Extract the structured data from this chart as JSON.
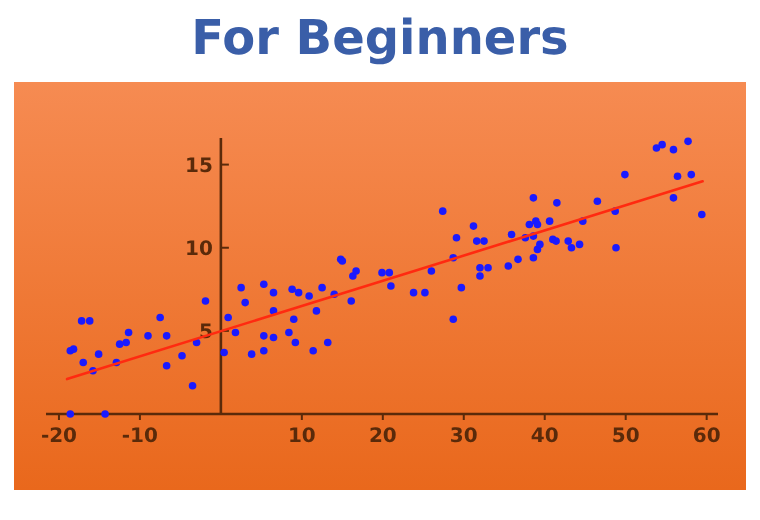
{
  "chart_data": {
    "type": "scatter",
    "title": "For Beginners",
    "xlim": [
      -21.6,
      61.4
    ],
    "ylim": [
      0,
      16.6
    ],
    "xticks": [
      -20,
      -10,
      10,
      20,
      30,
      40,
      50,
      60
    ],
    "yticks": [
      5,
      10,
      15
    ],
    "grid": false,
    "series": [
      {
        "marker": "circle",
        "color": "#1a1aff",
        "x": [
          -18.6,
          -18.2,
          -17.2,
          -16.2,
          -17,
          -15.8,
          -15.1,
          -14.3,
          -18.6,
          -12.9,
          -12.5,
          -11.7,
          -11.4,
          -9,
          -7.5,
          -6.7,
          -6.7,
          -4.8,
          -3.5,
          -3,
          -1.9,
          0.4,
          0.9,
          1.8,
          2.5,
          3,
          3.8,
          5.3,
          5.3,
          5.3,
          6.5,
          6.5,
          6.5,
          8.4,
          8.8,
          9,
          9.2,
          9.6,
          10.9,
          11.4,
          11.8,
          12.5,
          13.2,
          14,
          14.8,
          15,
          16.1,
          16.3,
          16.7,
          19.9,
          20.8,
          21,
          23.8,
          25.2,
          26,
          27.4,
          28.7,
          28.7,
          29.1,
          29.7,
          31.2,
          31.6,
          32.5,
          32,
          32,
          33,
          35.5,
          35.9,
          36.7,
          37.6,
          38.1,
          38.6,
          38.6,
          38.6,
          38.9,
          39.1,
          39.1,
          39.4,
          40.6,
          41,
          41.4,
          41.5,
          42.9,
          43.3,
          44.3,
          44.7,
          46.5,
          48.7,
          48.8,
          49.9,
          53.8,
          54.5,
          55.9,
          55.9,
          56.4,
          57.7,
          58.1,
          59.4
        ],
        "values": [
          3.8,
          3.9,
          5.6,
          5.6,
          3.1,
          2.6,
          3.6,
          0,
          0,
          3.1,
          4.2,
          4.3,
          4.9,
          4.7,
          5.8,
          4.7,
          2.9,
          3.5,
          1.7,
          4.3,
          6.8,
          3.7,
          5.8,
          4.9,
          7.6,
          6.7,
          3.6,
          7.8,
          4.7,
          3.8,
          7.3,
          4.6,
          6.2,
          4.9,
          7.5,
          5.7,
          4.3,
          7.3,
          7.1,
          3.8,
          6.2,
          7.6,
          4.3,
          7.2,
          9.3,
          9.2,
          6.8,
          8.3,
          8.6,
          8.5,
          8.5,
          7.7,
          7.3,
          7.3,
          8.6,
          12.2,
          5.7,
          9.4,
          10.6,
          7.6,
          11.3,
          10.4,
          10.4,
          8.8,
          8.3,
          8.8,
          8.9,
          10.8,
          9.3,
          10.6,
          11.4,
          13,
          10.7,
          9.4,
          11.6,
          11.4,
          9.9,
          10.2,
          11.6,
          10.5,
          10.4,
          12.7,
          10.4,
          10,
          10.2,
          11.6,
          12.8,
          12.2,
          10,
          14.4,
          16,
          16.2,
          15.9,
          13,
          14.3,
          16.4,
          14.4,
          12
        ]
      },
      {
        "type": "line",
        "marker": "none",
        "color": "#ff2a10",
        "x": [
          -19,
          59.5
        ],
        "values": [
          2.1,
          14.0
        ]
      }
    ]
  }
}
